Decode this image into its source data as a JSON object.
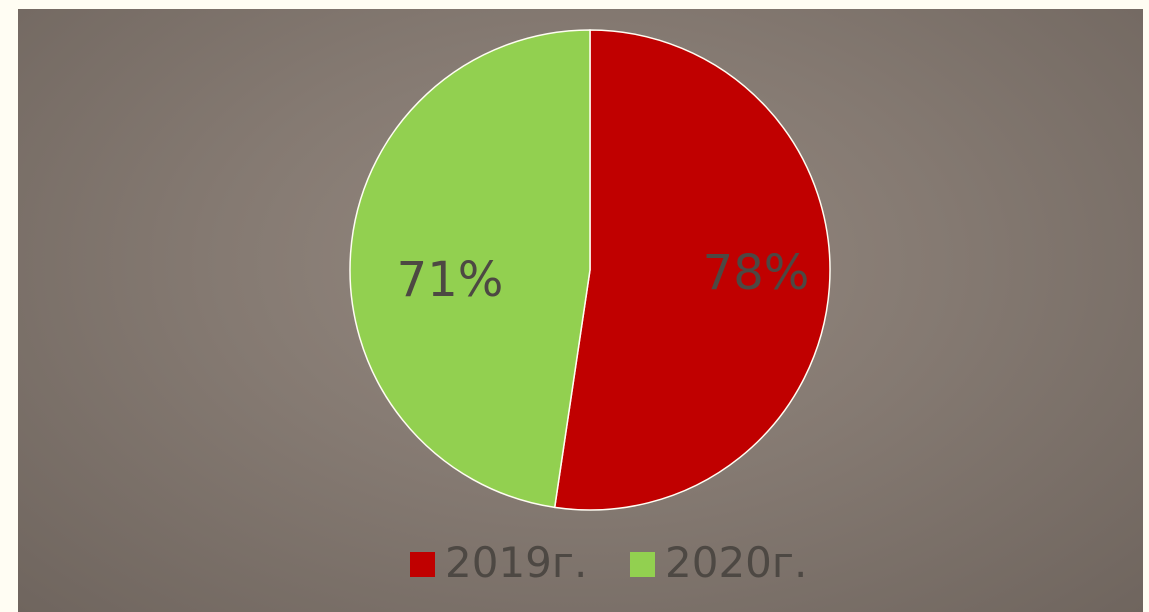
{
  "chart_data": {
    "type": "pie",
    "slices": [
      {
        "label": "2019г.",
        "value": 78,
        "display": "78%",
        "color": "#c00000"
      },
      {
        "label": "2020г.",
        "value": 71,
        "display": "71%",
        "color": "#92d050"
      }
    ],
    "legend": {
      "placement": "bottom",
      "items": [
        {
          "label": "2019г.",
          "color": "#c00000"
        },
        {
          "label": "2020г.",
          "color": "#92d050"
        }
      ]
    }
  }
}
